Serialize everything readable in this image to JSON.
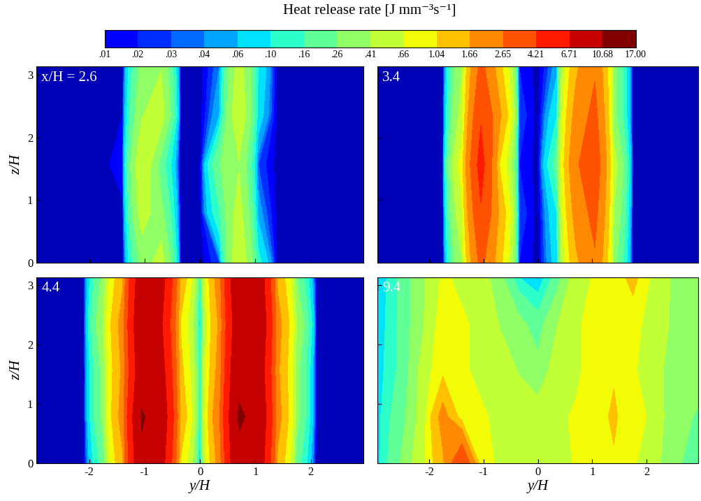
{
  "chart_data": [
    {
      "type": "heatmap",
      "title": "x/H = 2.6",
      "ylabel": "z/H",
      "tick_labels": "y",
      "x": [
        -2.95,
        -2.45,
        -2.1,
        -1.75,
        -1.4,
        -1.05,
        -0.7,
        -0.35,
        0,
        0.35,
        0.7,
        1.05,
        1.4,
        1.75,
        2.1,
        2.45,
        2.95
      ],
      "y": [
        0,
        0.785,
        1.57,
        2.355,
        3.14
      ],
      "xlim": [
        -2.95,
        2.95
      ],
      "ylim": [
        0,
        3.14
      ],
      "xticks": [
        -2,
        -1,
        0,
        1,
        2
      ],
      "yticks": [
        0,
        1,
        2,
        3
      ],
      "values": [
        [
          0.005,
          0.005,
          0.005,
          0.005,
          0.006,
          0.3,
          0.5,
          0.006,
          0.005,
          0.03,
          0.6,
          0.12,
          0.005,
          0.005,
          0.005,
          0.005,
          0.005
        ],
        [
          0.005,
          0.005,
          0.005,
          0.005,
          0.005,
          0.5,
          0.3,
          0.008,
          0.005,
          0.15,
          0.5,
          0.05,
          0.005,
          0.005,
          0.005,
          0.005,
          0.005
        ],
        [
          0.005,
          0.005,
          0.005,
          0.005,
          0.02,
          0.6,
          0.2,
          0.005,
          0.005,
          0.25,
          0.4,
          0.03,
          0.005,
          0.005,
          0.005,
          0.005,
          0.005
        ],
        [
          0.005,
          0.005,
          0.005,
          0.005,
          0.01,
          0.4,
          0.5,
          0.01,
          0.005,
          0.06,
          0.6,
          0.08,
          0.005,
          0.005,
          0.005,
          0.005,
          0.005
        ],
        [
          0.005,
          0.005,
          0.005,
          0.005,
          0.008,
          0.3,
          0.4,
          0.006,
          0.005,
          0.04,
          0.5,
          0.1,
          0.005,
          0.005,
          0.005,
          0.005,
          0.005
        ]
      ]
    },
    {
      "type": "heatmap",
      "title": "3.4",
      "tick_labels": false,
      "x": [
        -2.95,
        -2.45,
        -2.1,
        -1.75,
        -1.4,
        -1.05,
        -0.7,
        -0.35,
        0,
        0.35,
        0.7,
        1.05,
        1.4,
        1.75,
        2.1,
        2.45,
        2.95
      ],
      "y": [
        0,
        0.785,
        1.57,
        2.355,
        3.14
      ],
      "xlim": [
        -2.95,
        2.95
      ],
      "ylim": [
        0,
        3.14
      ],
      "xticks": [
        -2,
        -1,
        0,
        1,
        2
      ],
      "yticks": [
        0,
        1,
        2,
        3
      ],
      "values": [
        [
          0.005,
          0.005,
          0.005,
          0.005,
          0.4,
          3,
          1.2,
          0.02,
          0.005,
          0.08,
          1.5,
          2.5,
          0.3,
          0.005,
          0.005,
          0.005,
          0.005
        ],
        [
          0.005,
          0.005,
          0.005,
          0.005,
          0.6,
          4,
          1.5,
          0.03,
          0.005,
          0.1,
          2,
          3,
          0.4,
          0.005,
          0.005,
          0.005,
          0.005
        ],
        [
          0.005,
          0.005,
          0.005,
          0.01,
          0.8,
          5,
          1,
          0.02,
          0.005,
          0.2,
          2.5,
          3.5,
          0.5,
          0.01,
          0.005,
          0.005,
          0.005
        ],
        [
          0.005,
          0.005,
          0.005,
          0.005,
          0.5,
          4,
          1.8,
          0.03,
          0.005,
          0.1,
          2,
          3,
          0.3,
          0.005,
          0.005,
          0.005,
          0.005
        ],
        [
          0.005,
          0.005,
          0.005,
          0.005,
          0.4,
          3,
          1.2,
          0.02,
          0.005,
          0.05,
          1.5,
          2.5,
          0.3,
          0.005,
          0.005,
          0.005,
          0.005
        ]
      ]
    },
    {
      "type": "heatmap",
      "title": "4.4",
      "xlabel": "y/H",
      "ylabel": "z/H",
      "tick_labels": true,
      "x": [
        -2.95,
        -2.45,
        -2.1,
        -1.75,
        -1.4,
        -1.05,
        -0.7,
        -0.35,
        0,
        0.35,
        0.7,
        1.05,
        1.4,
        1.75,
        2.1,
        2.45,
        2.95
      ],
      "y": [
        0,
        0.785,
        1.57,
        2.355,
        3.14
      ],
      "xlim": [
        -2.95,
        2.95
      ],
      "ylim": [
        0,
        3.14
      ],
      "xticks": [
        -2,
        -1,
        0,
        1,
        2
      ],
      "yticks": [
        0,
        1,
        2,
        3
      ],
      "values": [
        [
          0.005,
          0.005,
          0.005,
          0.2,
          1.5,
          10,
          8,
          1,
          0.05,
          2,
          10,
          9,
          1.5,
          0.2,
          0.005,
          0.005,
          0.005
        ],
        [
          0.005,
          0.005,
          0.006,
          0.3,
          2,
          11,
          9,
          1.5,
          0.08,
          2.5,
          11,
          10,
          2,
          0.3,
          0.005,
          0.005,
          0.005
        ],
        [
          0.005,
          0.005,
          0.005,
          0.3,
          1.8,
          9,
          8,
          1.2,
          0.1,
          2,
          10,
          9,
          1.8,
          0.3,
          0.005,
          0.005,
          0.005
        ],
        [
          0.005,
          0.005,
          0.01,
          0.4,
          2,
          10,
          7,
          1,
          0.06,
          1.8,
          9,
          10,
          2,
          0.4,
          0.01,
          0.005,
          0.005
        ],
        [
          0.005,
          0.005,
          0.005,
          0.3,
          1.5,
          9,
          8,
          1.5,
          0.1,
          2.2,
          10,
          9,
          1.5,
          0.25,
          0.005,
          0.005,
          0.005
        ]
      ]
    },
    {
      "type": "heatmap",
      "title": "9.4",
      "xlabel": "y/H",
      "tick_labels": "x",
      "x": [
        -2.95,
        -2.45,
        -2.1,
        -1.75,
        -1.4,
        -1.05,
        -0.7,
        -0.35,
        0,
        0.35,
        0.7,
        1.05,
        1.4,
        1.75,
        2.1,
        2.45,
        2.95
      ],
      "y": [
        0,
        0.785,
        1.57,
        2.355,
        3.14
      ],
      "xlim": [
        -2.95,
        2.95
      ],
      "ylim": [
        0,
        3.14
      ],
      "xticks": [
        -2,
        -1,
        0,
        1,
        2
      ],
      "yticks": [
        0,
        1,
        2,
        3
      ],
      "values": [
        [
          0.08,
          0.3,
          0.6,
          1.5,
          4,
          0.8,
          0.6,
          0.5,
          0.4,
          0.5,
          0.7,
          0.9,
          1,
          0.7,
          0.5,
          0.3,
          0.2
        ],
        [
          0.08,
          0.25,
          0.5,
          2,
          0.8,
          0.7,
          0.6,
          0.5,
          0.5,
          0.6,
          0.7,
          0.9,
          1.1,
          0.8,
          0.6,
          0.3,
          0.25
        ],
        [
          0.07,
          0.2,
          0.5,
          0.9,
          0.7,
          0.6,
          0.5,
          0.4,
          0.3,
          0.5,
          0.6,
          0.8,
          1,
          0.7,
          0.5,
          0.35,
          0.3
        ],
        [
          0.06,
          0.2,
          0.4,
          0.8,
          0.7,
          0.6,
          0.4,
          0.3,
          0.2,
          0.4,
          0.6,
          0.8,
          0.9,
          0.8,
          0.5,
          0.4,
          0.3
        ],
        [
          0.05,
          0.2,
          0.4,
          0.7,
          0.6,
          0.5,
          0.3,
          0.1,
          0.05,
          0.2,
          0.5,
          0.7,
          0.8,
          1.2,
          0.6,
          0.4,
          0.3
        ]
      ]
    }
  ],
  "colorbar": {
    "title": "Heat release rate [J mm⁻³s⁻¹]",
    "ticks": [
      {
        "value": 0.01,
        "label": ".01"
      },
      {
        "value": 0.02,
        "label": ".02"
      },
      {
        "value": 0.03,
        "label": ".03"
      },
      {
        "value": 0.04,
        "label": ".04"
      },
      {
        "value": 0.06,
        "label": ".06"
      },
      {
        "value": 0.1,
        "label": ".10"
      },
      {
        "value": 0.16,
        "label": ".16"
      },
      {
        "value": 0.26,
        "label": ".26"
      },
      {
        "value": 0.41,
        "label": ".41"
      },
      {
        "value": 0.66,
        "label": ".66"
      },
      {
        "value": 1.04,
        "label": "1.04"
      },
      {
        "value": 1.66,
        "label": "1.66"
      },
      {
        "value": 2.65,
        "label": "2.65"
      },
      {
        "value": 4.21,
        "label": "4.21"
      },
      {
        "value": 6.71,
        "label": "6.71"
      },
      {
        "value": 10.68,
        "label": "10.68"
      },
      {
        "value": 17.0,
        "label": "17.00"
      }
    ]
  }
}
